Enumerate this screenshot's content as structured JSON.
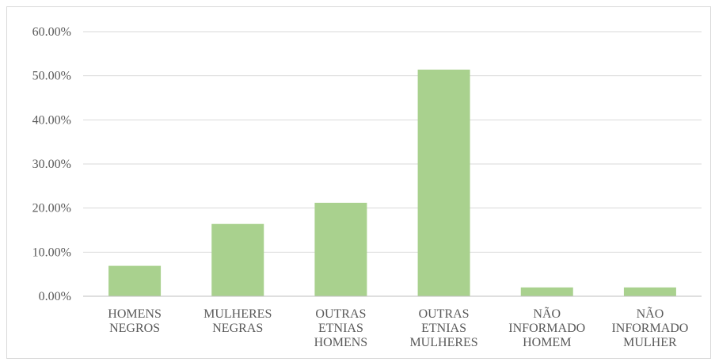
{
  "chart_data": {
    "type": "bar",
    "title": "",
    "xlabel": "",
    "ylabel": "",
    "categories": [
      [
        "HOMENS",
        "NEGROS"
      ],
      [
        "MULHERES",
        "NEGRAS"
      ],
      [
        "OUTRAS",
        "ETNIAS",
        "HOMENS"
      ],
      [
        "OUTRAS",
        "ETNIAS",
        "MULHERES"
      ],
      [
        "NÃO",
        "INFORMADO",
        "HOMEM"
      ],
      [
        "NÃO",
        "INFORMADO",
        "MULHER"
      ]
    ],
    "values": [
      6.9,
      16.4,
      21.2,
      51.4,
      2.0,
      2.0
    ],
    "ylim": [
      0,
      60
    ],
    "yticks": [
      0,
      10,
      20,
      30,
      40,
      50,
      60
    ],
    "ytick_labels": [
      "0.00%",
      "10.00%",
      "20.00%",
      "30.00%",
      "40.00%",
      "50.00%",
      "60.00%"
    ],
    "grid": true,
    "legend": "none",
    "colors": {
      "bar": "#a9d18e",
      "grid": "#d9d9d9",
      "axis": "#bfbfbf",
      "text": "#595959"
    }
  }
}
